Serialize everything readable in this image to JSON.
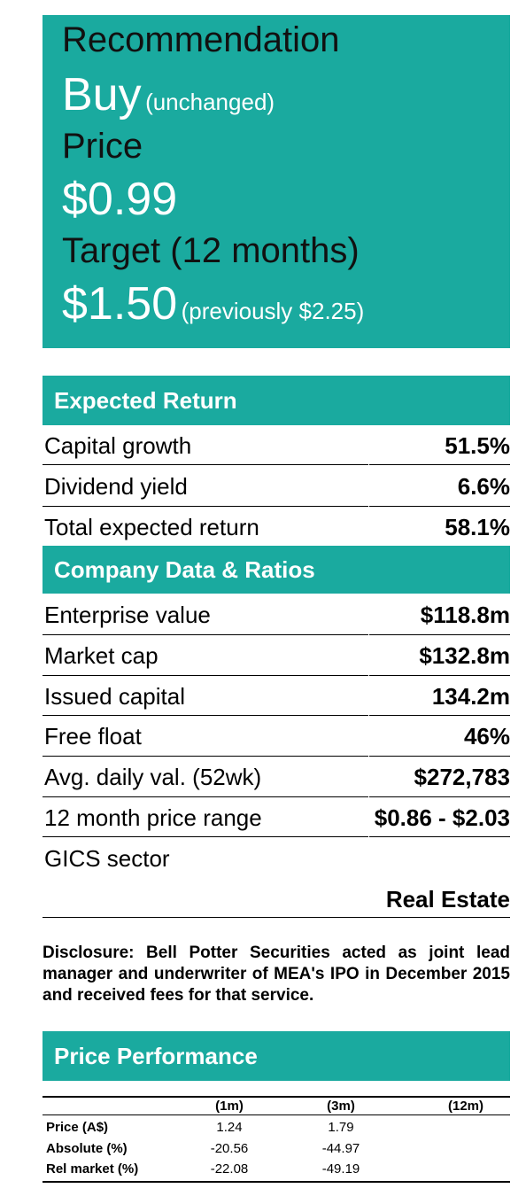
{
  "recommendation": {
    "label": "Recommendation",
    "value": "Buy",
    "value_note": "(unchanged)",
    "price_label": "Price",
    "price": "$0.99",
    "target_label": "Target (12 months)",
    "target": "$1.50",
    "target_note": "(previously $2.25)"
  },
  "expected_return": {
    "title": "Expected Return",
    "rows": [
      {
        "label": "Capital growth",
        "value": "51.5%"
      },
      {
        "label": "Dividend yield",
        "value": "6.6%"
      },
      {
        "label": "Total expected return",
        "value": "58.1%"
      }
    ]
  },
  "company_data": {
    "title": "Company Data & Ratios",
    "rows": [
      {
        "label": "Enterprise value",
        "value": "$118.8m"
      },
      {
        "label": "Market cap",
        "value": "$132.8m"
      },
      {
        "label": "Issued capital",
        "value": "134.2m"
      },
      {
        "label": "Free float",
        "value": "46%"
      },
      {
        "label": "Avg. daily val. (52wk)",
        "value": "$272,783"
      },
      {
        "label": "12 month price range",
        "value": "$0.86 - $2.03"
      }
    ],
    "sector_label": "GICS sector",
    "sector_value": "Real Estate"
  },
  "disclosure": "Disclosure: Bell Potter Securities acted as joint lead manager and underwriter of MEA's IPO in December 2015 and received fees for that service.",
  "price_performance": {
    "title": "Price Performance",
    "columns": [
      "(1m)",
      "(3m)",
      "(12m)"
    ],
    "rows": [
      {
        "label": "Price (A$)",
        "values": [
          "1.24",
          "1.79",
          ""
        ]
      },
      {
        "label": "Absolute (%)",
        "values": [
          "-20.56",
          "-44.97",
          ""
        ]
      },
      {
        "label": "Rel market (%)",
        "values": [
          "-22.08",
          "-49.19",
          ""
        ]
      }
    ]
  }
}
